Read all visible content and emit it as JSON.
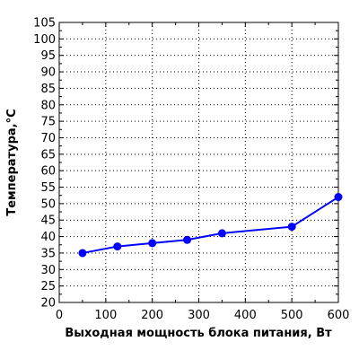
{
  "chart_data": {
    "type": "line",
    "title": "",
    "xlabel": "Выходная мощность блока питания, Вт",
    "ylabel": "Температура,°С",
    "xlim": [
      0,
      600
    ],
    "ylim": [
      20,
      105
    ],
    "x_ticks": [
      0,
      100,
      200,
      300,
      400,
      500,
      600
    ],
    "y_ticks": [
      20,
      25,
      30,
      35,
      40,
      45,
      50,
      55,
      60,
      65,
      70,
      75,
      80,
      85,
      90,
      95,
      100,
      105
    ],
    "grid": true,
    "grid_style": "dotted",
    "legend": "none",
    "series": [
      {
        "color": "#0000ff",
        "x": [
          50,
          125,
          200,
          275,
          350,
          500,
          600
        ],
        "y": [
          35,
          37,
          38,
          39,
          41,
          43,
          52
        ]
      }
    ]
  }
}
